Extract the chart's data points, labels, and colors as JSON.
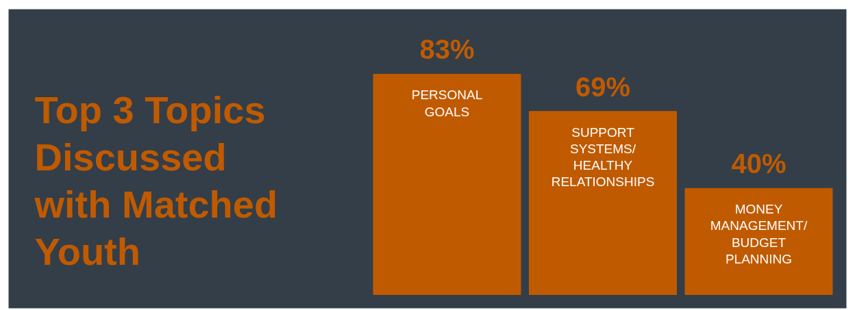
{
  "chart_data": {
    "type": "bar",
    "title": "Top 3 Topics\nDiscussed\nwith Matched\nYouth",
    "categories": [
      "PERSONAL\nGOALS",
      "SUPPORT\nSYSTEMS/\nHEALTHY\nRELATIONSHIPS",
      "MONEY\nMANAGEMENT/\nBUDGET\nPLANNING"
    ],
    "values": [
      83,
      69,
      40
    ],
    "value_labels": [
      "83%",
      "69%",
      "40%"
    ],
    "color": "#c05a00"
  }
}
